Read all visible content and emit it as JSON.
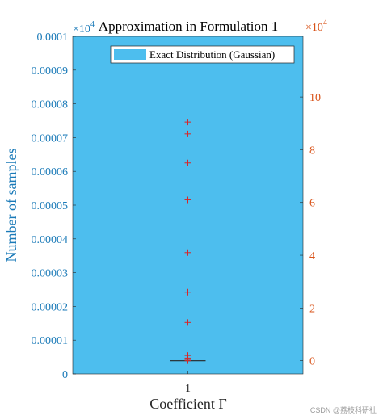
{
  "chart_data": {
    "type": "scatter",
    "title": "Approximation in Formulation 1",
    "xlabel": "Coefficient Γ",
    "ylabel_left": "Number of samples",
    "x_ticks": [
      "1"
    ],
    "y_left": {
      "range": [
        0,
        0.0001
      ],
      "ticks": [
        "0",
        "0.00001",
        "0.00002",
        "0.00003",
        "0.00004",
        "0.00005",
        "0.00006",
        "0.00007",
        "0.00008",
        "0.00009",
        "0.0001"
      ],
      "exponent_label": "×10",
      "exponent": "4",
      "color": "#1a7ab8"
    },
    "y_right": {
      "range": [
        -0.5,
        12.3
      ],
      "ticks": [
        "0",
        "2",
        "4",
        "6",
        "8",
        "10"
      ],
      "exponent_label": "×10",
      "exponent": "4",
      "color": "#d95319"
    },
    "legend": {
      "placement": "top-right",
      "entries": [
        "Exact Distribution (Gaussian)"
      ]
    },
    "series": [
      {
        "name": "Exact Distribution (Gaussian)",
        "kind": "area",
        "color": "#4dbeee"
      },
      {
        "kind": "outliers",
        "marker": "+",
        "color": "#d62728",
        "x": [
          1,
          1,
          1,
          1,
          1,
          1,
          1,
          1,
          1,
          1,
          1
        ],
        "y": [
          9.05,
          8.6,
          7.5,
          6.1,
          4.1,
          2.6,
          1.45,
          0.2,
          0.1,
          0.05,
          0.0
        ]
      }
    ],
    "median_line": {
      "x": 1,
      "y": 0.0
    },
    "xlim": [
      0.5,
      1.5
    ],
    "grid": false
  },
  "watermark": "CSDN @荔枝科研社"
}
